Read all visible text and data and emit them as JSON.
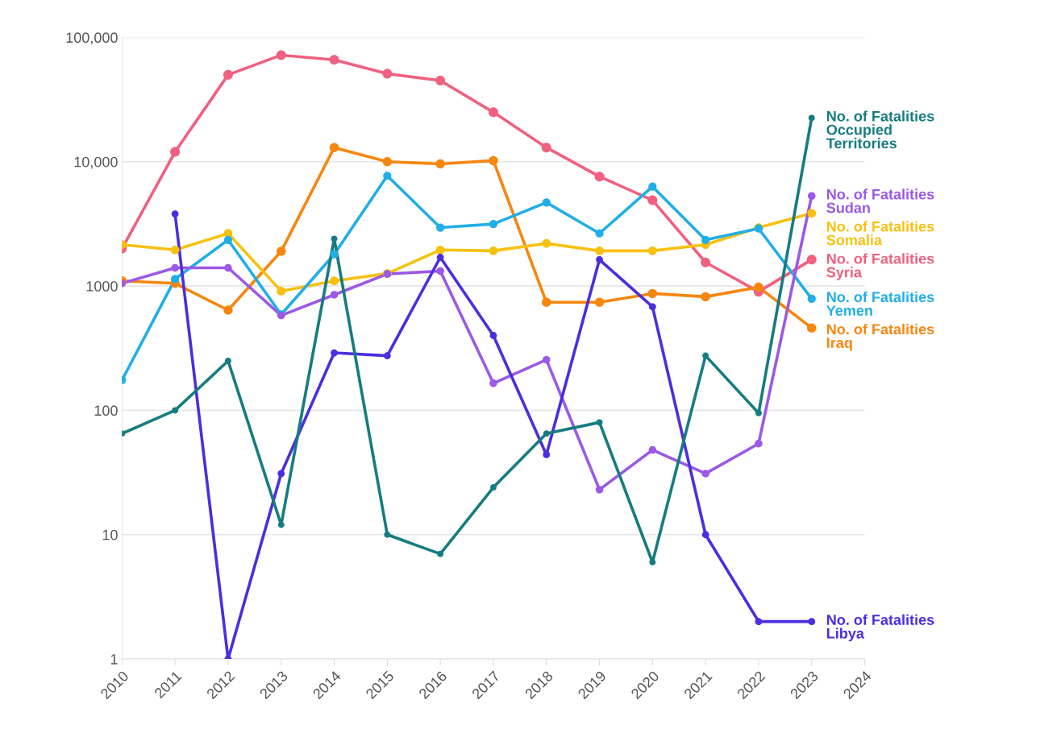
{
  "chart_data": {
    "type": "line",
    "x": [
      2010,
      2011,
      2012,
      2013,
      2014,
      2015,
      2016,
      2017,
      2018,
      2019,
      2020,
      2021,
      2022,
      2023
    ],
    "series": [
      {
        "name": "No. of Fatalities\nSyria",
        "color": "#f0607f",
        "values": [
          2000,
          12000,
          50000,
          72000,
          66000,
          51000,
          45000,
          25000,
          13000,
          7600,
          4900,
          1550,
          900,
          1630
        ]
      },
      {
        "name": "No. of Fatalities\nIraq",
        "color": "#f7860f",
        "values": [
          1100,
          1050,
          640,
          1900,
          13000,
          10000,
          9600,
          10200,
          740,
          740,
          870,
          820,
          980,
          460
        ]
      },
      {
        "name": "No. of Fatalities\nSomalia",
        "color": "#f7c10f",
        "values": [
          2150,
          1950,
          2650,
          910,
          1100,
          1260,
          1950,
          1920,
          2200,
          1920,
          1920,
          2150,
          2950,
          3850
        ]
      },
      {
        "name": "No. of Fatalities\nYemen",
        "color": "#21aee8",
        "values": [
          175,
          1140,
          2350,
          590,
          1800,
          7700,
          2950,
          3150,
          4700,
          2650,
          6300,
          2350,
          2900,
          790
        ]
      },
      {
        "name": "No. of Fatalities\nSudan",
        "color": "#9b59e6",
        "values": [
          1050,
          1400,
          1400,
          580,
          850,
          1250,
          1320,
          165,
          255,
          23,
          48,
          31,
          54,
          5300
        ]
      },
      {
        "name": "No. of Fatalities\nLibya",
        "color": "#4b2ee0",
        "values": [
          null,
          3800,
          1,
          31,
          290,
          275,
          1700,
          400,
          44,
          1630,
          680,
          10,
          2,
          2
        ]
      },
      {
        "name": "No. of Fatalities\nOccupied\nTerritories",
        "color": "#167c80",
        "values": [
          65,
          100,
          250,
          12,
          2400,
          10,
          7,
          24,
          65,
          80,
          6,
          275,
          95,
          22500
        ]
      }
    ],
    "log": "y",
    "xlim": [
      2010,
      2024
    ],
    "xticks": [
      2010,
      2011,
      2012,
      2013,
      2014,
      2015,
      2016,
      2017,
      2018,
      2019,
      2020,
      2021,
      2022,
      2023,
      2024
    ],
    "ylim": [
      1,
      100000
    ],
    "yticks": [
      {
        "value": 1,
        "label": "1"
      },
      {
        "value": 10,
        "label": "10"
      },
      {
        "value": 100,
        "label": "100"
      },
      {
        "value": 1000,
        "label": "1000"
      },
      {
        "value": 10000,
        "label": "10,000"
      },
      {
        "value": 100000,
        "label": "100,000"
      }
    ],
    "grid": "y",
    "marker": "circle",
    "line_style": "solid"
  }
}
